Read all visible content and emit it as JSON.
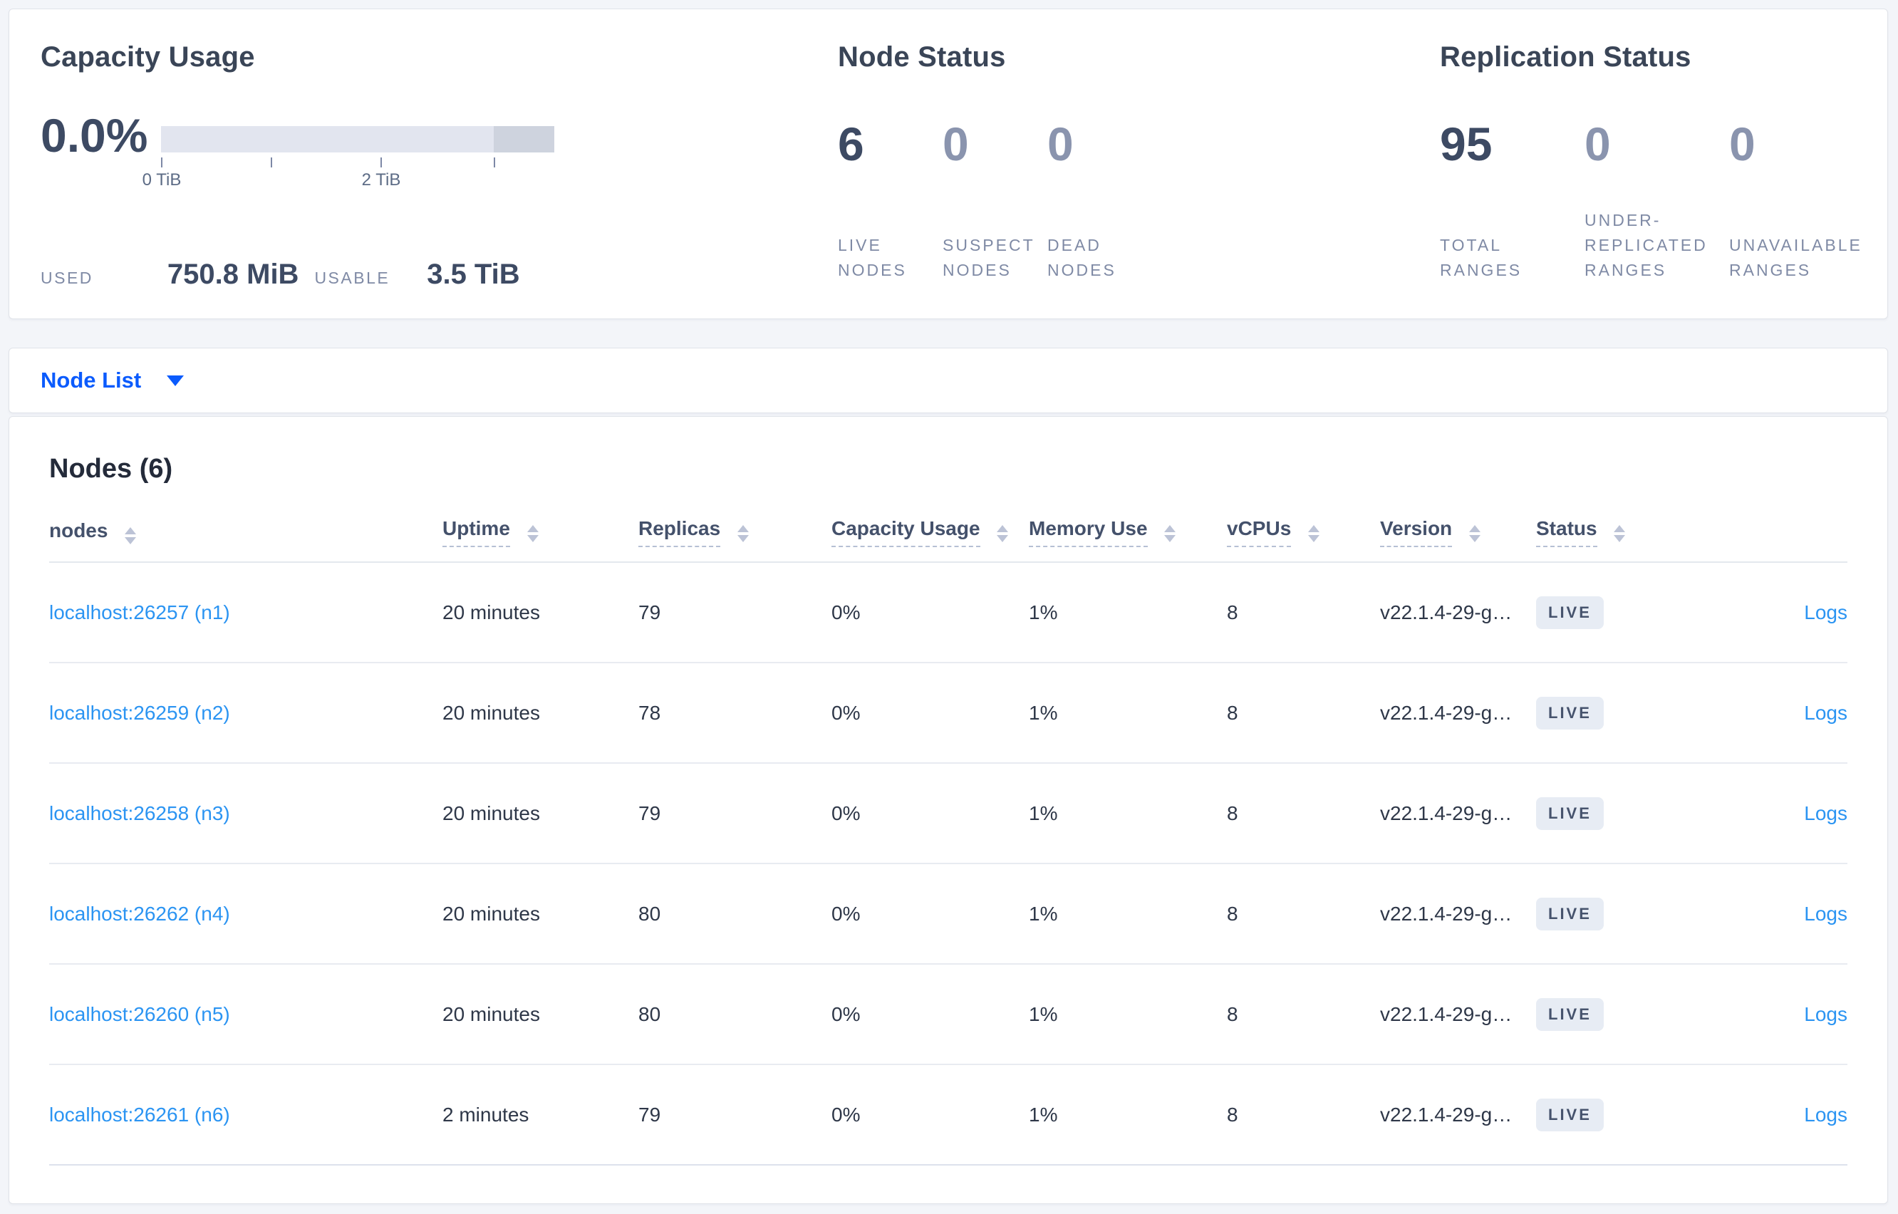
{
  "capacity": {
    "title": "Capacity Usage",
    "percent": "0.0%",
    "used_label": "USED",
    "used_value": "750.8 MiB",
    "usable_label": "USABLE",
    "usable_value": "3.5 TiB",
    "ticks": [
      "0 TiB",
      "2 TiB"
    ]
  },
  "node_status": {
    "title": "Node Status",
    "stats": [
      {
        "value": "6",
        "label": "LIVE NODES"
      },
      {
        "value": "0",
        "label": "SUSPECT NODES"
      },
      {
        "value": "0",
        "label": "DEAD NODES"
      }
    ]
  },
  "replication": {
    "title": "Replication Status",
    "stats": [
      {
        "value": "95",
        "label": "TOTAL RANGES"
      },
      {
        "value": "0",
        "label": "UNDER-REPLICATED RANGES"
      },
      {
        "value": "0",
        "label": "UNAVAILABLE RANGES"
      }
    ]
  },
  "node_list": {
    "label": "Node List"
  },
  "nodes_section": {
    "title": "Nodes (6)",
    "columns": [
      {
        "label": "nodes"
      },
      {
        "label": "Uptime"
      },
      {
        "label": "Replicas"
      },
      {
        "label": "Capacity Usage"
      },
      {
        "label": "Memory Use"
      },
      {
        "label": "vCPUs"
      },
      {
        "label": "Version"
      },
      {
        "label": "Status"
      }
    ],
    "rows": [
      {
        "node": "localhost:26257 (n1)",
        "uptime": "20 minutes",
        "replicas": "79",
        "capacity": "0%",
        "memory": "1%",
        "vcpus": "8",
        "version": "v22.1.4-29-g…",
        "status": "LIVE",
        "logs": "Logs"
      },
      {
        "node": "localhost:26259 (n2)",
        "uptime": "20 minutes",
        "replicas": "78",
        "capacity": "0%",
        "memory": "1%",
        "vcpus": "8",
        "version": "v22.1.4-29-g…",
        "status": "LIVE",
        "logs": "Logs"
      },
      {
        "node": "localhost:26258 (n3)",
        "uptime": "20 minutes",
        "replicas": "79",
        "capacity": "0%",
        "memory": "1%",
        "vcpus": "8",
        "version": "v22.1.4-29-g…",
        "status": "LIVE",
        "logs": "Logs"
      },
      {
        "node": "localhost:26262 (n4)",
        "uptime": "20 minutes",
        "replicas": "80",
        "capacity": "0%",
        "memory": "1%",
        "vcpus": "8",
        "version": "v22.1.4-29-g…",
        "status": "LIVE",
        "logs": "Logs"
      },
      {
        "node": "localhost:26260 (n5)",
        "uptime": "20 minutes",
        "replicas": "80",
        "capacity": "0%",
        "memory": "1%",
        "vcpus": "8",
        "version": "v22.1.4-29-g…",
        "status": "LIVE",
        "logs": "Logs"
      },
      {
        "node": "localhost:26261 (n6)",
        "uptime": "2 minutes",
        "replicas": "79",
        "capacity": "0%",
        "memory": "1%",
        "vcpus": "8",
        "version": "v22.1.4-29-g…",
        "status": "LIVE",
        "logs": "Logs"
      }
    ]
  },
  "colors": {
    "page_background": "#f3f5f9",
    "panel_background": "#ffffff",
    "primary_text": "#3d4a63",
    "muted_number": "#8a94ae",
    "stat_label": "#7f8aa5",
    "link_blue": "#2b94f2",
    "dropdown_blue": "#0b5bfd",
    "badge_background": "#e7ecf4",
    "bar_light": "#e2e5ef",
    "bar_dark": "#ced3de"
  }
}
